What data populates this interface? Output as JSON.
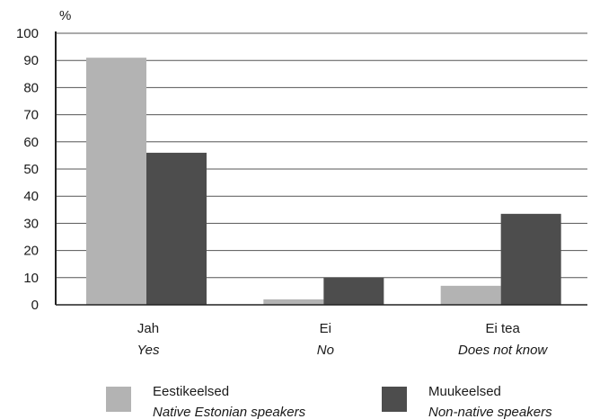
{
  "chart_data": {
    "type": "bar",
    "y_unit_label": "%",
    "ylim": [
      0,
      100
    ],
    "yticks": [
      0,
      10,
      20,
      30,
      40,
      50,
      60,
      70,
      80,
      90,
      100
    ],
    "grid": true,
    "categories": [
      {
        "label": "Jah",
        "label_en": "Yes"
      },
      {
        "label": "Ei",
        "label_en": "No"
      },
      {
        "label": "Ei tea",
        "label_en": "Does not know"
      }
    ],
    "series": [
      {
        "name": "Eestikeelsed",
        "name_en": "Native Estonian speakers",
        "color": "#b3b3b3",
        "values": [
          91,
          2,
          7
        ]
      },
      {
        "name": "Muukeelsed",
        "name_en": "Non-native speakers",
        "color": "#4d4d4d",
        "values": [
          56,
          10,
          33.5
        ]
      }
    ],
    "legend_position": "bottom"
  }
}
